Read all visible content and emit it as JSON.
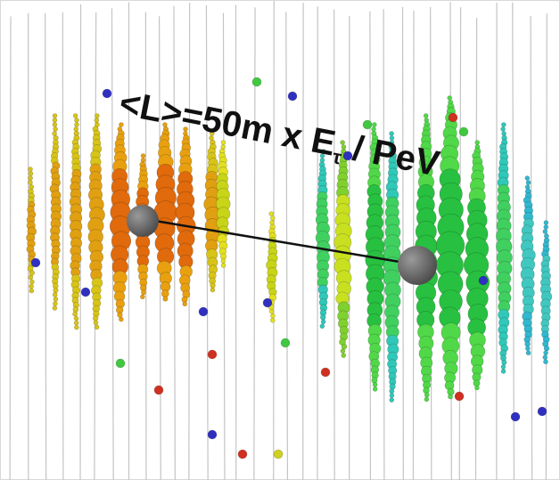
{
  "annotation": {
    "main": "<L>=50m x E",
    "subscript": "τ",
    "tail": " / PeV"
  }
}
